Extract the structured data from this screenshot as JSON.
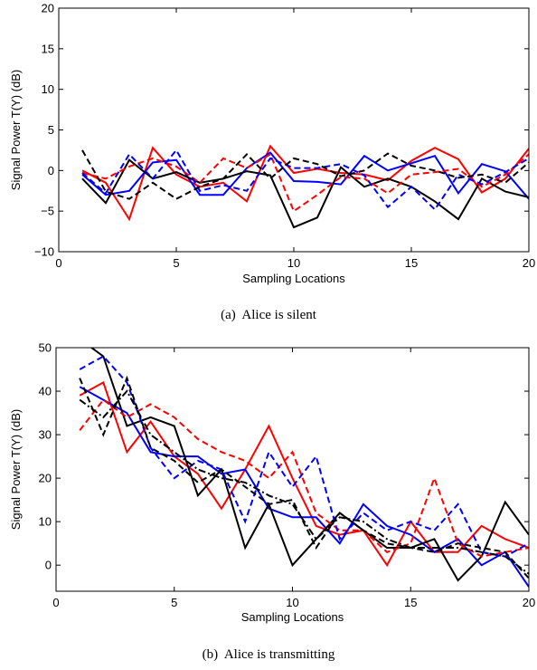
{
  "chart_data": [
    {
      "type": "line",
      "caption": "(a)  Alice is silent",
      "xlabel": "Sampling Locations",
      "ylabel": "Signal Power T(Y) (dB)",
      "xlim": [
        0,
        20
      ],
      "ylim": [
        -10,
        20
      ],
      "xticks": [
        0,
        5,
        10,
        15,
        20
      ],
      "yticks": [
        -10,
        -5,
        0,
        5,
        10,
        15,
        20
      ],
      "grid": false,
      "x": [
        1,
        2,
        3,
        4,
        5,
        6,
        7,
        8,
        9,
        10,
        11,
        12,
        13,
        14,
        15,
        16,
        17,
        18,
        19,
        20
      ],
      "series": [
        {
          "color": "#ff0000",
          "dash": "solid",
          "values": [
            0,
            -1.5,
            -6,
            2.8,
            -0.5,
            -2,
            -1.5,
            -3.8,
            3,
            -0.3,
            0.2,
            -0.3,
            -0.5,
            -1.2,
            1.2,
            2.8,
            1.4,
            -2.7,
            -1,
            2.7
          ]
        },
        {
          "color": "#0000ff",
          "dash": "solid",
          "values": [
            -0.5,
            -3,
            -2.5,
            1,
            1.3,
            -3,
            -3,
            0.3,
            2.2,
            -1.3,
            -1.4,
            -1.7,
            1.8,
            0,
            0.9,
            1.8,
            -2.8,
            0.8,
            -0.1,
            -3.5
          ]
        },
        {
          "color": "#000000",
          "dash": "solid",
          "values": [
            -1,
            -4,
            1.3,
            -1,
            -0.2,
            -1.5,
            -1,
            -0.1,
            -0.6,
            -7,
            -5.8,
            0.4,
            -2,
            -1,
            -2,
            -3.8,
            -6,
            -1,
            -2.6,
            -3.3
          ]
        },
        {
          "color": "#ff0000",
          "dash": "dashed",
          "values": [
            -0.3,
            -1,
            0.5,
            1.5,
            0.5,
            -1.5,
            1.5,
            0.3,
            2,
            -5,
            -3,
            -0.8,
            -1,
            -2.8,
            -0.5,
            -0.2,
            0.2,
            -2,
            -0.5,
            2
          ]
        },
        {
          "color": "#0000ff",
          "dash": "dashed",
          "values": [
            -0.3,
            -2.8,
            2,
            -1,
            2.5,
            -2.5,
            -1.8,
            -2.5,
            1.5,
            0.3,
            0.3,
            0.8,
            -0.6,
            -4.5,
            -2,
            -4.8,
            -0.5,
            -1.7,
            -0.2,
            1.5
          ]
        },
        {
          "color": "#000000",
          "dash": "dashed",
          "values": [
            2.5,
            -2.6,
            -3.5,
            -1.5,
            -3.5,
            -2,
            -1,
            2,
            -1,
            1.5,
            0.8,
            -0.7,
            0,
            2.1,
            0.6,
            0,
            -0.9,
            -0.5,
            -1.5,
            1
          ]
        }
      ]
    },
    {
      "type": "line",
      "caption": "(b)  Alice is transmitting",
      "xlabel": "Sampling Locations",
      "ylabel": "Signal Power T(Y) (dB)",
      "xlim": [
        0,
        20
      ],
      "ylim": [
        -6,
        50
      ],
      "xticks": [
        0,
        5,
        10,
        15,
        20
      ],
      "yticks": [
        0,
        10,
        20,
        30,
        40,
        50
      ],
      "grid": false,
      "x": [
        1,
        2,
        3,
        4,
        5,
        6,
        7,
        8,
        9,
        10,
        11,
        12,
        13,
        14,
        15,
        16,
        17,
        18,
        19,
        20
      ],
      "series": [
        {
          "color": "#ff0000",
          "dash": "solid",
          "values": [
            39,
            42,
            26,
            33,
            25,
            21,
            13,
            22,
            32,
            20,
            9,
            7,
            8,
            0,
            10,
            3,
            3,
            9,
            6,
            4
          ]
        },
        {
          "color": "#0000ff",
          "dash": "solid",
          "values": [
            41,
            38,
            35,
            26,
            25,
            25,
            21,
            22,
            13,
            11,
            11,
            5,
            14,
            9,
            7,
            3,
            6,
            0,
            3,
            -5
          ]
        },
        {
          "color": "#000000",
          "dash": "solid",
          "values": [
            52,
            48,
            32,
            34,
            32,
            16,
            22,
            4,
            14,
            0,
            6,
            12,
            8,
            4,
            4,
            6,
            -3.5,
            2,
            14.5,
            7
          ]
        },
        {
          "color": "#ff0000",
          "dash": "dashed",
          "values": [
            31,
            38,
            34,
            37,
            34,
            29,
            26,
            24,
            20,
            26,
            12,
            8,
            8,
            3,
            5,
            20,
            5,
            2,
            3,
            4
          ]
        },
        {
          "color": "#0000ff",
          "dash": "dashed",
          "values": [
            45,
            48,
            42,
            27,
            20,
            24,
            22,
            10,
            26,
            18,
            25,
            6,
            12,
            8,
            10,
            8,
            14,
            3,
            2,
            5
          ]
        },
        {
          "color": "#000000",
          "dash": "dashed",
          "values": [
            43,
            30,
            43,
            27,
            24,
            19,
            22,
            18,
            14,
            15,
            4,
            12,
            8,
            5,
            4,
            3,
            5,
            4,
            3,
            -3
          ]
        },
        {
          "color": "#000000",
          "dash": "dashdot",
          "values": [
            38,
            34,
            40,
            30,
            26,
            22,
            20,
            19,
            16,
            14,
            6,
            11,
            10,
            6,
            4,
            4,
            4,
            3,
            2,
            -2
          ]
        }
      ]
    }
  ]
}
